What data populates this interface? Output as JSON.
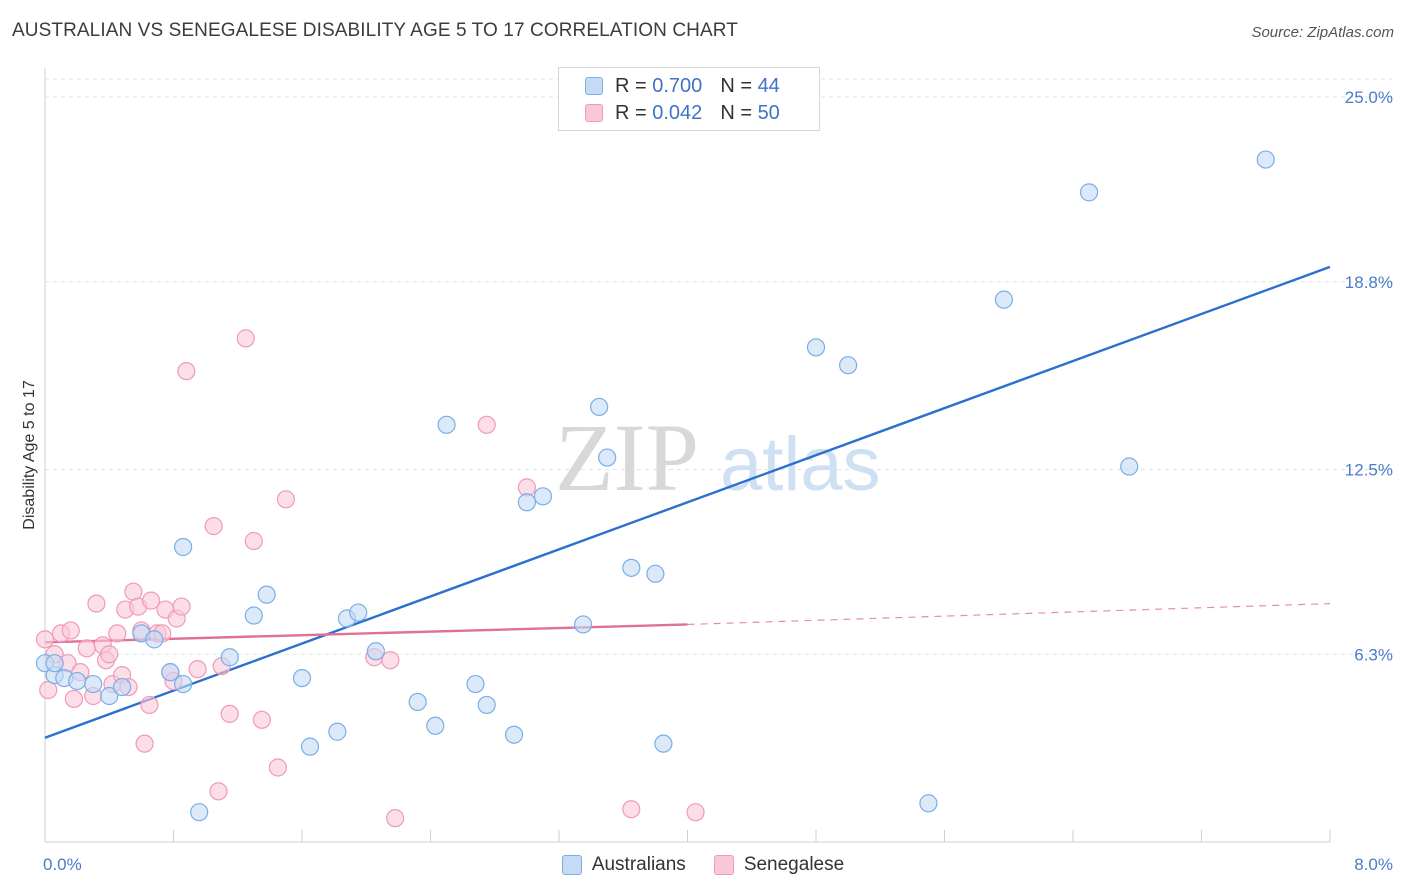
{
  "chart_data": {
    "type": "scatter",
    "title": "AUSTRALIAN VS SENEGALESE DISABILITY AGE 5 TO 17 CORRELATION CHART",
    "source": "Source: ZipAtlas.com",
    "ylabel": "Disability Age 5 to 17",
    "xlabel": "",
    "xlim": [
      0,
      8.0
    ],
    "ylim": [
      0,
      25.0
    ],
    "x_tick_labels": [
      "0.0%",
      "8.0%"
    ],
    "y_ticks": [
      6.3,
      12.5,
      18.8,
      25.0
    ],
    "y_tick_labels": [
      "6.3%",
      "12.5%",
      "18.8%",
      "25.0%"
    ],
    "grid": true,
    "watermark": "ZIPatlas",
    "legend": {
      "position": "top-center",
      "entries": [
        {
          "r_label": "R =",
          "r_value": "0.700",
          "n_label": "N =",
          "n_value": "44"
        },
        {
          "r_label": "R =",
          "r_value": "0.042",
          "n_label": "N =",
          "n_value": "50"
        }
      ]
    },
    "series": [
      {
        "name": "Australians",
        "color": "#7aaee6",
        "fill": "#c5dbf5",
        "trend_color": "#2b6fcf",
        "trend": {
          "x0": 0.0,
          "y0": 3.5,
          "x1": 8.0,
          "y1": 19.3
        },
        "points": [
          [
            0.0,
            6.0
          ],
          [
            0.06,
            5.6
          ],
          [
            0.12,
            5.5
          ],
          [
            0.2,
            5.4
          ],
          [
            0.3,
            5.3
          ],
          [
            0.4,
            4.9
          ],
          [
            0.48,
            5.2
          ],
          [
            0.6,
            7.0
          ],
          [
            0.68,
            6.8
          ],
          [
            0.78,
            5.7
          ],
          [
            0.86,
            9.9
          ],
          [
            0.96,
            1.0
          ],
          [
            1.15,
            6.2
          ],
          [
            1.3,
            7.6
          ],
          [
            1.38,
            8.3
          ],
          [
            1.6,
            5.5
          ],
          [
            1.65,
            3.2
          ],
          [
            1.82,
            3.7
          ],
          [
            1.88,
            7.5
          ],
          [
            1.95,
            7.7
          ],
          [
            2.06,
            6.4
          ],
          [
            2.32,
            4.7
          ],
          [
            2.43,
            3.9
          ],
          [
            2.5,
            14.0
          ],
          [
            2.68,
            5.3
          ],
          [
            2.75,
            4.6
          ],
          [
            2.92,
            3.6
          ],
          [
            3.0,
            11.4
          ],
          [
            3.1,
            11.6
          ],
          [
            3.35,
            7.3
          ],
          [
            3.45,
            14.6
          ],
          [
            3.5,
            12.9
          ],
          [
            3.65,
            9.2
          ],
          [
            3.8,
            9.0
          ],
          [
            3.85,
            3.3
          ],
          [
            4.8,
            16.6
          ],
          [
            5.0,
            16.0
          ],
          [
            5.5,
            1.3
          ],
          [
            5.97,
            18.2
          ],
          [
            6.5,
            21.8
          ],
          [
            6.75,
            12.6
          ],
          [
            7.6,
            22.9
          ],
          [
            0.86,
            5.3
          ],
          [
            0.06,
            6.0
          ]
        ]
      },
      {
        "name": "Senegalese",
        "color": "#f09ab6",
        "fill": "#f8c8d8",
        "trend_color": "#e07098",
        "trend": {
          "x0": 0.0,
          "y0": 6.7,
          "x1": 4.0,
          "y1": 7.3
        },
        "trend_dashed": {
          "x0": 4.0,
          "y0": 7.3,
          "x1": 8.0,
          "y1": 8.0
        },
        "points": [
          [
            0.0,
            6.8
          ],
          [
            0.02,
            5.1
          ],
          [
            0.06,
            6.3
          ],
          [
            0.1,
            7.0
          ],
          [
            0.14,
            6.0
          ],
          [
            0.16,
            7.1
          ],
          [
            0.18,
            4.8
          ],
          [
            0.22,
            5.7
          ],
          [
            0.26,
            6.5
          ],
          [
            0.3,
            4.9
          ],
          [
            0.32,
            8.0
          ],
          [
            0.36,
            6.6
          ],
          [
            0.38,
            6.1
          ],
          [
            0.4,
            6.3
          ],
          [
            0.42,
            5.3
          ],
          [
            0.45,
            7.0
          ],
          [
            0.48,
            5.6
          ],
          [
            0.5,
            7.8
          ],
          [
            0.52,
            5.2
          ],
          [
            0.55,
            8.4
          ],
          [
            0.58,
            7.9
          ],
          [
            0.6,
            7.1
          ],
          [
            0.62,
            3.3
          ],
          [
            0.65,
            4.6
          ],
          [
            0.66,
            8.1
          ],
          [
            0.7,
            7.0
          ],
          [
            0.73,
            7.0
          ],
          [
            0.75,
            7.8
          ],
          [
            0.78,
            5.7
          ],
          [
            0.8,
            5.4
          ],
          [
            0.82,
            7.5
          ],
          [
            0.85,
            7.9
          ],
          [
            0.88,
            15.8
          ],
          [
            0.95,
            5.8
          ],
          [
            1.05,
            10.6
          ],
          [
            1.08,
            1.7
          ],
          [
            1.1,
            5.9
          ],
          [
            1.15,
            4.3
          ],
          [
            1.25,
            16.9
          ],
          [
            1.3,
            10.1
          ],
          [
            1.35,
            4.1
          ],
          [
            1.45,
            2.5
          ],
          [
            1.5,
            11.5
          ],
          [
            2.05,
            6.2
          ],
          [
            2.15,
            6.1
          ],
          [
            2.18,
            0.8
          ],
          [
            2.75,
            14.0
          ],
          [
            3.0,
            11.9
          ],
          [
            3.65,
            1.1
          ],
          [
            4.05,
            1.0
          ]
        ]
      }
    ]
  }
}
